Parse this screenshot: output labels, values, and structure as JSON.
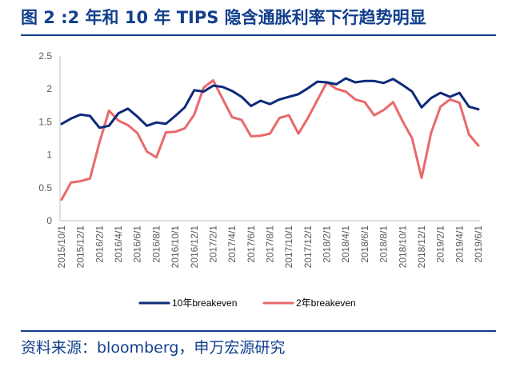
{
  "header": {
    "title": "图 2 :2 年和 10 年 TIPS 隐含通胀利率下行趋势明显"
  },
  "footer": {
    "source": "资料来源：bloomberg，申万宏源研究"
  },
  "colors": {
    "title": "#123f8c",
    "series_10y": "#0d2a7a",
    "series_2y": "#e8696b",
    "axis": "#bfbfbf"
  },
  "chart_data": {
    "type": "line",
    "title": "",
    "xlabel": "",
    "ylabel": "",
    "ylim": [
      0,
      2.5
    ],
    "yticks": [
      "0",
      "0.5",
      "1",
      "1.5",
      "2",
      "2.5"
    ],
    "grid": false,
    "legend_position": "bottom",
    "x_labels": [
      "2015/10/1",
      "2015/12/1",
      "2016/2/1",
      "2016/4/1",
      "2016/6/1",
      "2016/8/1",
      "2016/10/1",
      "2016/12/1",
      "2017/2/1",
      "2017/4/1",
      "2017/6/1",
      "2017/8/1",
      "2017/10/1",
      "2017/12/1",
      "2018/2/1",
      "2018/4/1",
      "2018/6/1",
      "2018/8/1",
      "2018/10/1",
      "2018/12/1",
      "2019/2/1",
      "2019/4/1",
      "2019/6/1"
    ],
    "x": [
      "2015/10",
      "2015/11",
      "2015/12",
      "2016/1",
      "2016/2",
      "2016/3",
      "2016/4",
      "2016/5",
      "2016/6",
      "2016/7",
      "2016/8",
      "2016/9",
      "2016/10",
      "2016/11",
      "2016/12",
      "2017/1",
      "2017/2",
      "2017/3",
      "2017/4",
      "2017/5",
      "2017/6",
      "2017/7",
      "2017/8",
      "2017/9",
      "2017/10",
      "2017/11",
      "2017/12",
      "2018/1",
      "2018/2",
      "2018/3",
      "2018/4",
      "2018/5",
      "2018/6",
      "2018/7",
      "2018/8",
      "2018/9",
      "2018/10",
      "2018/11",
      "2018/12",
      "2019/1",
      "2019/2",
      "2019/3",
      "2019/4",
      "2019/5",
      "2019/6"
    ],
    "series": [
      {
        "name": "10年breakeven",
        "values": [
          1.47,
          1.55,
          1.61,
          1.59,
          1.41,
          1.44,
          1.63,
          1.7,
          1.58,
          1.44,
          1.49,
          1.47,
          1.59,
          1.72,
          1.98,
          1.96,
          2.05,
          2.03,
          1.97,
          1.88,
          1.74,
          1.82,
          1.77,
          1.84,
          1.88,
          1.92,
          2.01,
          2.11,
          2.1,
          2.07,
          2.16,
          2.1,
          2.12,
          2.12,
          2.09,
          2.15,
          2.06,
          1.96,
          1.72,
          1.86,
          1.94,
          1.88,
          1.94,
          1.73,
          1.69
        ]
      },
      {
        "name": "2年breakeven",
        "values": [
          0.32,
          0.58,
          0.6,
          0.64,
          1.19,
          1.67,
          1.52,
          1.45,
          1.33,
          1.05,
          0.96,
          1.34,
          1.35,
          1.4,
          1.61,
          2.02,
          2.13,
          1.85,
          1.57,
          1.53,
          1.28,
          1.29,
          1.32,
          1.56,
          1.6,
          1.32,
          1.56,
          1.83,
          2.1,
          2.0,
          1.96,
          1.84,
          1.8,
          1.6,
          1.68,
          1.8,
          1.51,
          1.25,
          0.65,
          1.33,
          1.73,
          1.84,
          1.79,
          1.31,
          1.14
        ]
      }
    ]
  }
}
